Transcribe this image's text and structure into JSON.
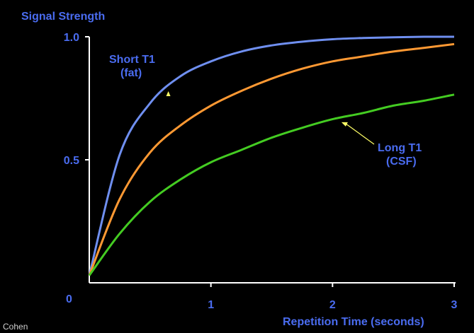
{
  "chart_data": {
    "type": "line",
    "ylabel": "Signal Strength",
    "xlabel": "Repetition Time (seconds)",
    "xlim": [
      0,
      3
    ],
    "ylim": [
      0,
      1.0
    ],
    "x_ticks": [
      "0",
      "1",
      "2",
      "3"
    ],
    "y_ticks": [
      "0.5",
      "1.0"
    ],
    "origin_label": "0",
    "grid": false,
    "x": [
      0,
      0.25,
      0.5,
      0.75,
      1.0,
      1.25,
      1.5,
      1.75,
      2.0,
      2.25,
      2.5,
      2.75,
      3.0
    ],
    "series": [
      {
        "color": "#6f8ff0",
        "values": [
          0.03,
          0.52,
          0.73,
          0.84,
          0.9,
          0.94,
          0.965,
          0.98,
          0.99,
          0.995,
          0.998,
          1.0,
          1.0
        ]
      },
      {
        "color": "#ff9933",
        "values": [
          0.03,
          0.34,
          0.53,
          0.64,
          0.72,
          0.78,
          0.83,
          0.87,
          0.9,
          0.92,
          0.94,
          0.955,
          0.97
        ]
      },
      {
        "color": "#44cc22",
        "values": [
          0.03,
          0.2,
          0.33,
          0.42,
          0.49,
          0.54,
          0.59,
          0.63,
          0.665,
          0.69,
          0.72,
          0.74,
          0.765
        ]
      }
    ],
    "annotations": [
      {
        "line1": "Short T1",
        "line2": "(fat)",
        "points_to_series": 0,
        "at_x": 0.65
      },
      {
        "line1": "Long T1",
        "line2": "(CSF)",
        "points_to_series": 2,
        "at_x": 2.05
      }
    ]
  },
  "credit": "Cohen",
  "colors": {
    "text": "#4a6cf0",
    "axes": "#ffffff",
    "arrow": "#ffff66",
    "background": "#000000"
  }
}
